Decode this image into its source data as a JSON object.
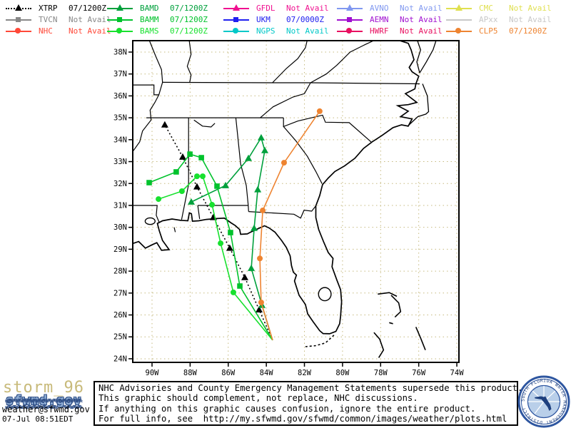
{
  "legend": {
    "entries": [
      {
        "model": "XTRP",
        "status": "07/1200Z",
        "color": "#000000",
        "marker": "triangle",
        "line": "dotted"
      },
      {
        "model": "TVCN",
        "status": "Not Avail",
        "color": "#888888",
        "marker": "square",
        "line": "solid"
      },
      {
        "model": "NHC",
        "status": "Not Avail",
        "color": "#ff4838",
        "marker": "circle",
        "line": "solid"
      },
      {
        "model": "BAMD",
        "status": "07/1200Z",
        "color": "#00a03c",
        "marker": "triangle",
        "line": "solid"
      },
      {
        "model": "BAMM",
        "status": "07/1200Z",
        "color": "#00c22c",
        "marker": "square",
        "line": "solid"
      },
      {
        "model": "BAMS",
        "status": "07/1200Z",
        "color": "#17e12e",
        "marker": "circle",
        "line": "solid"
      },
      {
        "model": "GFDL",
        "status": "Not Avail",
        "color": "#f01090",
        "marker": "triangle",
        "line": "solid"
      },
      {
        "model": "UKM",
        "status": "07/0000Z",
        "color": "#2020f0",
        "marker": "square",
        "line": "solid"
      },
      {
        "model": "NGPS",
        "status": "Not Avail",
        "color": "#00c8c8",
        "marker": "circle",
        "line": "solid"
      },
      {
        "model": "AVNO",
        "status": "Not Avail",
        "color": "#8098f0",
        "marker": "triangle",
        "line": "solid"
      },
      {
        "model": "AEMN",
        "status": "Not Avail",
        "color": "#a010d0",
        "marker": "square",
        "line": "solid"
      },
      {
        "model": "HWRF",
        "status": "Not Avail",
        "color": "#e81060",
        "marker": "circle",
        "line": "solid"
      },
      {
        "model": "CMC",
        "status": "Not Avail",
        "color": "#e0e050",
        "marker": "triangle",
        "line": "solid"
      },
      {
        "model": "APxx",
        "status": "Not Avail",
        "color": "#c8c8c8",
        "marker": "none",
        "line": "solid"
      },
      {
        "model": "CLP5",
        "status": "07/1200Z",
        "color": "#ee8431",
        "marker": "circle",
        "line": "solid"
      }
    ]
  },
  "map": {
    "grid_color": "#c6ba7f",
    "lat_ticks": [
      {
        "label": "38N",
        "value": 38
      },
      {
        "label": "37N",
        "value": 37
      },
      {
        "label": "36N",
        "value": 36
      },
      {
        "label": "35N",
        "value": 35
      },
      {
        "label": "34N",
        "value": 34
      },
      {
        "label": "33N",
        "value": 33
      },
      {
        "label": "32N",
        "value": 32
      },
      {
        "label": "31N",
        "value": 31
      },
      {
        "label": "30N",
        "value": 30
      },
      {
        "label": "29N",
        "value": 29
      },
      {
        "label": "28N",
        "value": 28
      },
      {
        "label": "27N",
        "value": 27
      },
      {
        "label": "26N",
        "value": 26
      },
      {
        "label": "25N",
        "value": 25
      },
      {
        "label": "24N",
        "value": 24
      }
    ],
    "lon_ticks": [
      {
        "label": "90W",
        "value": -90
      },
      {
        "label": "88W",
        "value": -88
      },
      {
        "label": "86W",
        "value": -86
      },
      {
        "label": "84W",
        "value": -84
      },
      {
        "label": "82W",
        "value": -82
      },
      {
        "label": "80W",
        "value": -80
      },
      {
        "label": "78W",
        "value": -78
      },
      {
        "label": "76W",
        "value": -76
      },
      {
        "label": "74W",
        "value": -74
      }
    ],
    "tracks": [
      {
        "model": "XTRP",
        "color": "#000000",
        "marker": "triangle",
        "line": "dotted",
        "points": [
          [
            -83.67,
            24.85
          ],
          [
            -84.38,
            26.24
          ],
          [
            -85.13,
            27.71
          ],
          [
            -85.92,
            29.05
          ],
          [
            -86.78,
            30.45
          ],
          [
            -87.64,
            31.85
          ],
          [
            -88.39,
            33.21
          ],
          [
            -89.33,
            34.68
          ]
        ]
      },
      {
        "model": "BAMD",
        "color": "#00a03c",
        "marker": "triangle",
        "line": "solid",
        "points": [
          [
            -83.67,
            24.85
          ],
          [
            -84.23,
            26.44
          ],
          [
            -84.79,
            28.13
          ],
          [
            -84.64,
            29.96
          ],
          [
            -84.45,
            31.72
          ],
          [
            -84.08,
            33.51
          ],
          [
            -84.27,
            34.09
          ],
          [
            -84.94,
            33.15
          ],
          [
            -86.14,
            31.91
          ],
          [
            -87.94,
            31.16
          ]
        ]
      },
      {
        "model": "BAMM",
        "color": "#00c22c",
        "marker": "square",
        "line": "solid",
        "points": [
          [
            -83.67,
            24.85
          ],
          [
            -85.39,
            27.32
          ],
          [
            -85.88,
            29.76
          ],
          [
            -86.59,
            31.88
          ],
          [
            -87.41,
            33.18
          ],
          [
            -88.01,
            33.34
          ],
          [
            -88.73,
            32.53
          ],
          [
            -90.15,
            32.04
          ]
        ]
      },
      {
        "model": "BAMS",
        "color": "#17e12e",
        "marker": "circle",
        "line": "solid",
        "points": [
          [
            -83.67,
            24.85
          ],
          [
            -85.73,
            27.03
          ],
          [
            -86.4,
            29.27
          ],
          [
            -86.85,
            31.03
          ],
          [
            -87.34,
            32.33
          ],
          [
            -87.64,
            32.33
          ],
          [
            -88.43,
            31.65
          ],
          [
            -89.66,
            31.29
          ]
        ]
      },
      {
        "model": "CLP5",
        "color": "#ee8431",
        "marker": "circle",
        "line": "solid",
        "points": [
          [
            -83.67,
            24.85
          ],
          [
            -84.27,
            26.57
          ],
          [
            -84.34,
            28.58
          ],
          [
            -84.19,
            30.77
          ],
          [
            -83.07,
            32.95
          ],
          [
            -81.2,
            35.3
          ]
        ]
      }
    ]
  },
  "footer": {
    "lines": [
      "NHC Advisories and County Emergency Management Statements supersede this product.",
      "This graphic should complement, not replace, NHC discussions.",
      "If anything on this graphic causes confusion, ignore the entire product.",
      "For full info, see  http://my.sfwmd.gov/sfwmd/common/images/weather/plots.html"
    ]
  },
  "branding": {
    "title": "storm_96",
    "logo": "sfwmd.gov",
    "email": "weather@sfwmd.gov",
    "timestamp": "07-Jul 08:51EDT"
  },
  "seal": {
    "text": "SOUTH FLORIDA WATER MANAGEMENT DISTRICT"
  }
}
